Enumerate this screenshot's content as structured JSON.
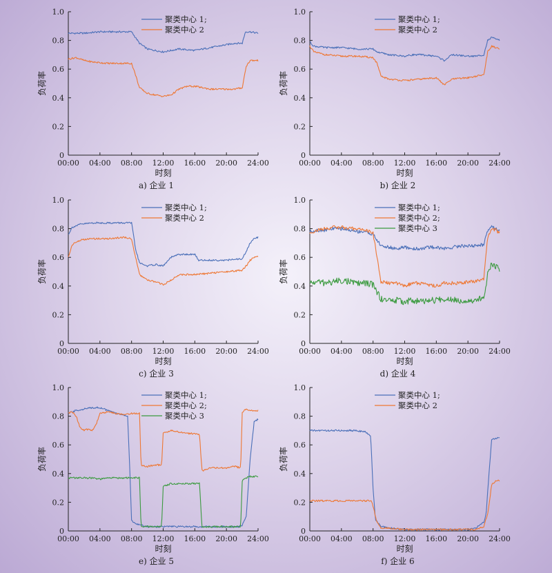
{
  "colors": {
    "series1": "#4a6fb8",
    "series2": "#ee7733",
    "series3": "#3a9a3e"
  },
  "chart_data": [
    {
      "type": "line",
      "caption": "a) 企业 1",
      "xlabel": "时刻",
      "ylabel": "负荷率",
      "xticks": [
        "00:00",
        "04:00",
        "08:00",
        "12:00",
        "16:00",
        "20:00",
        "24:00"
      ],
      "yticks": [
        "0",
        "0.2",
        "0.4",
        "0.6",
        "0.8",
        "1.0"
      ],
      "xlim": [
        0,
        24
      ],
      "ylim": [
        0,
        1.0
      ],
      "legend_position": "top-center",
      "series": [
        {
          "name": "聚类中心 1;",
          "x": [
            0,
            2,
            4,
            6,
            8,
            9,
            10,
            12,
            14,
            16,
            18,
            20,
            21,
            22,
            22.4,
            23,
            24
          ],
          "y": [
            0.85,
            0.85,
            0.86,
            0.86,
            0.86,
            0.78,
            0.74,
            0.72,
            0.74,
            0.73,
            0.75,
            0.77,
            0.78,
            0.78,
            0.86,
            0.86,
            0.85
          ]
        },
        {
          "name": "聚类中心 2",
          "x": [
            0,
            1,
            2,
            3,
            5,
            7,
            8,
            8.5,
            9,
            10,
            11,
            12,
            13,
            14,
            15,
            16,
            17,
            18,
            19,
            20,
            21,
            22,
            22.5,
            23,
            24
          ],
          "y": [
            0.67,
            0.68,
            0.66,
            0.65,
            0.64,
            0.64,
            0.64,
            0.56,
            0.47,
            0.43,
            0.42,
            0.41,
            0.42,
            0.46,
            0.48,
            0.48,
            0.47,
            0.46,
            0.46,
            0.46,
            0.46,
            0.47,
            0.62,
            0.66,
            0.66
          ]
        }
      ]
    },
    {
      "type": "line",
      "caption": "b) 企业 2",
      "xlabel": "时刻",
      "ylabel": "负荷率",
      "xticks": [
        "00:00",
        "04:00",
        "08:00",
        "12:00",
        "16:00",
        "20:00",
        "24:00"
      ],
      "yticks": [
        "0",
        "0.2",
        "0.4",
        "0.6",
        "0.8",
        "1.0"
      ],
      "xlim": [
        0,
        24
      ],
      "ylim": [
        0,
        1.0
      ],
      "legend_position": "top-right",
      "series": [
        {
          "name": "聚类中心 1;",
          "x": [
            0,
            0.5,
            2,
            4,
            6,
            8,
            8.5,
            10,
            12,
            13,
            14,
            16,
            17,
            17.5,
            18,
            20,
            21,
            22,
            22.5,
            23,
            24
          ],
          "y": [
            0.79,
            0.76,
            0.75,
            0.75,
            0.74,
            0.74,
            0.72,
            0.7,
            0.69,
            0.7,
            0.7,
            0.69,
            0.66,
            0.68,
            0.7,
            0.69,
            0.69,
            0.7,
            0.8,
            0.82,
            0.8
          ]
        },
        {
          "name": "聚类中心 2",
          "x": [
            0,
            0.5,
            2,
            4,
            6,
            8,
            8.5,
            9,
            10,
            12,
            14,
            16,
            17,
            17.5,
            18,
            20,
            21,
            22,
            22.5,
            23,
            24
          ],
          "y": [
            0.76,
            0.72,
            0.7,
            0.69,
            0.69,
            0.68,
            0.64,
            0.55,
            0.53,
            0.52,
            0.53,
            0.54,
            0.49,
            0.51,
            0.53,
            0.54,
            0.55,
            0.56,
            0.72,
            0.76,
            0.74
          ]
        }
      ]
    },
    {
      "type": "line",
      "caption": "c) 企业 3",
      "xlabel": "时刻",
      "ylabel": "负荷率",
      "xticks": [
        "00:00",
        "04:00",
        "08:00",
        "12:00",
        "16:00",
        "20:00",
        "24:00"
      ],
      "yticks": [
        "0",
        "0.2",
        "0.4",
        "0.6",
        "0.8",
        "1.0"
      ],
      "xlim": [
        0,
        24
      ],
      "ylim": [
        0,
        1.0
      ],
      "legend_position": "top-center",
      "series": [
        {
          "name": "聚类中心 1;",
          "x": [
            0,
            0.5,
            1.5,
            3,
            5,
            7,
            8,
            8.5,
            9,
            10,
            11,
            12,
            13,
            14,
            16,
            16.5,
            18,
            20,
            22,
            22.5,
            23,
            23.5,
            24
          ],
          "y": [
            0.76,
            0.81,
            0.83,
            0.84,
            0.84,
            0.84,
            0.84,
            0.66,
            0.56,
            0.54,
            0.55,
            0.54,
            0.6,
            0.62,
            0.62,
            0.58,
            0.58,
            0.58,
            0.59,
            0.64,
            0.7,
            0.73,
            0.74
          ]
        },
        {
          "name": "聚类中心 2",
          "x": [
            0,
            0.5,
            1.5,
            3,
            5,
            7,
            8,
            8.5,
            9,
            10,
            11,
            12,
            13,
            14,
            16,
            18,
            20,
            22,
            22.5,
            23,
            23.5,
            24
          ],
          "y": [
            0.6,
            0.69,
            0.72,
            0.73,
            0.73,
            0.74,
            0.73,
            0.6,
            0.48,
            0.44,
            0.43,
            0.41,
            0.44,
            0.48,
            0.48,
            0.49,
            0.5,
            0.51,
            0.54,
            0.58,
            0.6,
            0.61
          ]
        }
      ]
    },
    {
      "type": "line",
      "caption": "d) 企业 4",
      "xlabel": "时刻",
      "ylabel": "负荷率",
      "xticks": [
        "00:00",
        "04:00",
        "08:00",
        "12:00",
        "16:00",
        "20:00",
        "24:00"
      ],
      "yticks": [
        "0",
        "0.2",
        "0.4",
        "0.6",
        "0.8",
        "1.0"
      ],
      "xlim": [
        0,
        24
      ],
      "ylim": [
        0,
        1.0
      ],
      "legend_position": "top-right",
      "series": [
        {
          "name": "聚类中心 1;",
          "x": [
            0,
            1,
            2,
            3,
            4,
            5,
            6,
            7,
            8,
            8.5,
            9,
            10,
            11,
            12,
            13,
            14,
            15,
            16,
            17,
            18,
            19,
            20,
            21,
            22,
            22.5,
            23,
            23.5,
            24
          ],
          "y": [
            0.78,
            0.79,
            0.79,
            0.8,
            0.8,
            0.79,
            0.78,
            0.78,
            0.76,
            0.72,
            0.68,
            0.67,
            0.66,
            0.67,
            0.66,
            0.66,
            0.67,
            0.67,
            0.66,
            0.67,
            0.68,
            0.68,
            0.68,
            0.69,
            0.79,
            0.82,
            0.8,
            0.79
          ]
        },
        {
          "name": "聚类中心 2;",
          "x": [
            0,
            1,
            2,
            3,
            4,
            5,
            6,
            7,
            8,
            8.5,
            9,
            10,
            11,
            12,
            13,
            14,
            15,
            16,
            17,
            18,
            19,
            20,
            21,
            22,
            22.5,
            23,
            23.5,
            24
          ],
          "y": [
            0.77,
            0.79,
            0.8,
            0.81,
            0.81,
            0.8,
            0.8,
            0.79,
            0.77,
            0.6,
            0.43,
            0.42,
            0.42,
            0.4,
            0.42,
            0.42,
            0.41,
            0.4,
            0.42,
            0.42,
            0.42,
            0.43,
            0.43,
            0.45,
            0.74,
            0.8,
            0.79,
            0.77
          ]
        },
        {
          "name": "聚类中心 3",
          "x": [
            0,
            1,
            2,
            3,
            4,
            5,
            6,
            7,
            8,
            8.5,
            9,
            10,
            11,
            12,
            13,
            14,
            15,
            16,
            17,
            18,
            19,
            20,
            21,
            22,
            22.5,
            23,
            23.5,
            24
          ],
          "y": [
            0.42,
            0.43,
            0.42,
            0.43,
            0.44,
            0.43,
            0.42,
            0.42,
            0.41,
            0.36,
            0.31,
            0.3,
            0.3,
            0.29,
            0.3,
            0.29,
            0.3,
            0.3,
            0.31,
            0.31,
            0.3,
            0.3,
            0.3,
            0.32,
            0.48,
            0.56,
            0.54,
            0.52
          ]
        }
      ]
    },
    {
      "type": "line",
      "caption": "e) 企业 5",
      "xlabel": "时刻",
      "ylabel": "负荷率",
      "xticks": [
        "00:00",
        "04:00",
        "08:00",
        "12:00",
        "16:00",
        "20:00",
        "24:00"
      ],
      "yticks": [
        "0",
        "0.2",
        "0.4",
        "0.6",
        "0.8",
        "1.0"
      ],
      "xlim": [
        0,
        24
      ],
      "ylim": [
        0,
        1.0
      ],
      "legend_position": "top-center",
      "series": [
        {
          "name": "聚类中心 1;",
          "x": [
            0,
            1,
            2,
            3,
            4,
            5,
            6,
            7,
            7.5,
            7.8,
            8,
            8.5,
            10,
            12,
            14,
            16,
            18,
            20,
            21.5,
            22,
            22.5,
            23,
            23.5,
            24
          ],
          "y": [
            0.82,
            0.84,
            0.85,
            0.86,
            0.86,
            0.84,
            0.82,
            0.81,
            0.8,
            0.4,
            0.07,
            0.05,
            0.03,
            0.03,
            0.03,
            0.03,
            0.03,
            0.03,
            0.03,
            0.04,
            0.1,
            0.5,
            0.76,
            0.78
          ]
        },
        {
          "name": "聚类中心 2;",
          "x": [
            0,
            0.5,
            1,
            1.5,
            2,
            2.5,
            3,
            3.5,
            4,
            5,
            6,
            7,
            8,
            9,
            9.2,
            10,
            11,
            11.8,
            12,
            13,
            14,
            15,
            16,
            16.6,
            16.9,
            17.5,
            18,
            19,
            20,
            21,
            21.8,
            22,
            22.5,
            23,
            24
          ],
          "y": [
            0.82,
            0.83,
            0.8,
            0.72,
            0.7,
            0.71,
            0.7,
            0.74,
            0.82,
            0.83,
            0.82,
            0.81,
            0.82,
            0.82,
            0.46,
            0.45,
            0.46,
            0.46,
            0.68,
            0.7,
            0.69,
            0.68,
            0.68,
            0.67,
            0.42,
            0.43,
            0.44,
            0.44,
            0.44,
            0.45,
            0.44,
            0.83,
            0.85,
            0.84,
            0.84
          ]
        },
        {
          "name": "聚类中心 3",
          "x": [
            0,
            1,
            2,
            3,
            4,
            5,
            6,
            7,
            8,
            8.5,
            9,
            9.2,
            10,
            11,
            11.8,
            12,
            13,
            14,
            15,
            16,
            16.6,
            16.9,
            17.5,
            18,
            19,
            20,
            21,
            21.8,
            22,
            22.5,
            23,
            24
          ],
          "y": [
            0.37,
            0.37,
            0.37,
            0.37,
            0.36,
            0.37,
            0.37,
            0.37,
            0.37,
            0.37,
            0.37,
            0.03,
            0.03,
            0.03,
            0.03,
            0.31,
            0.33,
            0.33,
            0.33,
            0.33,
            0.33,
            0.03,
            0.03,
            0.03,
            0.03,
            0.03,
            0.03,
            0.03,
            0.35,
            0.37,
            0.38,
            0.38
          ]
        }
      ]
    },
    {
      "type": "line",
      "caption": "f) 企业 6",
      "xlabel": "时刻",
      "ylabel": "负荷率",
      "xticks": [
        "00:00",
        "04:00",
        "08:00",
        "12:00",
        "16:00",
        "20:00",
        "24:00"
      ],
      "yticks": [
        "0",
        "0.2",
        "0.4",
        "0.6",
        "0.8",
        "1.0"
      ],
      "xlim": [
        0,
        24
      ],
      "ylim": [
        0,
        1.0
      ],
      "legend_position": "top-center",
      "series": [
        {
          "name": "聚类中心 1;",
          "x": [
            0,
            2,
            4,
            6,
            7,
            7.7,
            8,
            8.3,
            9,
            10,
            12,
            14,
            16,
            18,
            20,
            21,
            22,
            22.3,
            22.6,
            23,
            24
          ],
          "y": [
            0.7,
            0.7,
            0.7,
            0.7,
            0.69,
            0.66,
            0.3,
            0.08,
            0.03,
            0.02,
            0.01,
            0.01,
            0.01,
            0.01,
            0.01,
            0.02,
            0.06,
            0.12,
            0.35,
            0.64,
            0.65
          ]
        },
        {
          "name": "聚类中心 2",
          "x": [
            0,
            2,
            4,
            6,
            7,
            7.8,
            8,
            8.5,
            9,
            10,
            12,
            14,
            16,
            18,
            20,
            21,
            22,
            22.5,
            23,
            23.5,
            24
          ],
          "y": [
            0.21,
            0.21,
            0.21,
            0.21,
            0.21,
            0.21,
            0.17,
            0.06,
            0.02,
            0.02,
            0.01,
            0.01,
            0.01,
            0.01,
            0.01,
            0.01,
            0.03,
            0.12,
            0.32,
            0.35,
            0.35
          ]
        }
      ]
    }
  ]
}
